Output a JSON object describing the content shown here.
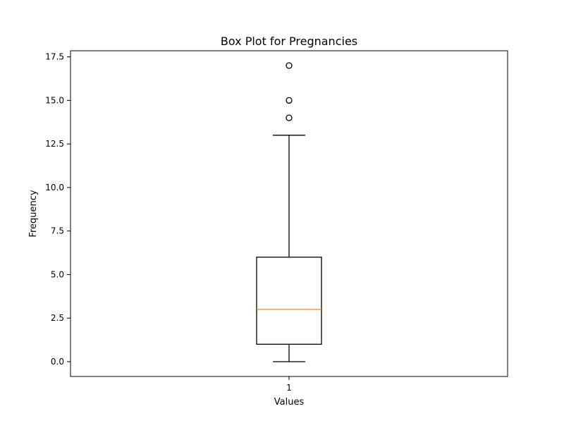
{
  "chart_data": {
    "type": "box",
    "title": "Box Plot for Pregnancies",
    "xlabel": "Values",
    "ylabel": "Frequency",
    "categories": [
      "1"
    ],
    "ylim": [
      -0.85,
      17.85
    ],
    "y_ticks": [
      0.0,
      2.5,
      5.0,
      7.5,
      10.0,
      12.5,
      15.0,
      17.5
    ],
    "y_tick_labels": [
      "0.0",
      "2.5",
      "5.0",
      "7.5",
      "10.0",
      "12.5",
      "15.0",
      "17.5"
    ],
    "grid": false,
    "box": {
      "whisker_low": 0,
      "q1": 1,
      "median": 3,
      "q3": 6,
      "whisker_high": 13,
      "outliers": [
        14,
        15,
        17
      ]
    },
    "colors": {
      "box": "#000000",
      "median": "#ff7f0e",
      "background": "#ffffff"
    }
  }
}
